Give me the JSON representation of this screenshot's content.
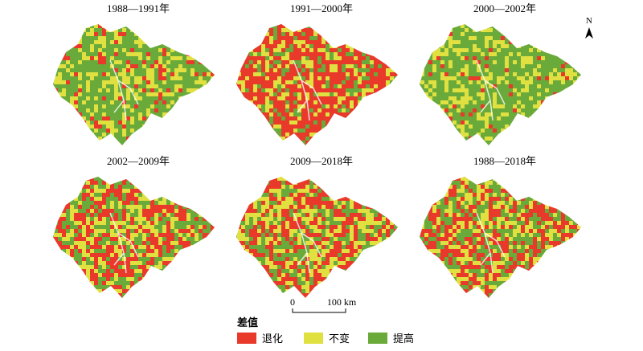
{
  "panels": [
    {
      "title": "1988—1991年"
    },
    {
      "title": "1991—2000年"
    },
    {
      "title": "2000—2002年"
    },
    {
      "title": "2002—2009年"
    },
    {
      "title": "2009—2018年"
    },
    {
      "title": "1988—2018年"
    }
  ],
  "north": "N",
  "scale_bar": {
    "start": "0",
    "end": "100 km"
  },
  "legend": {
    "title": "差值",
    "items": [
      "退化",
      "不变",
      "提高"
    ]
  }
}
